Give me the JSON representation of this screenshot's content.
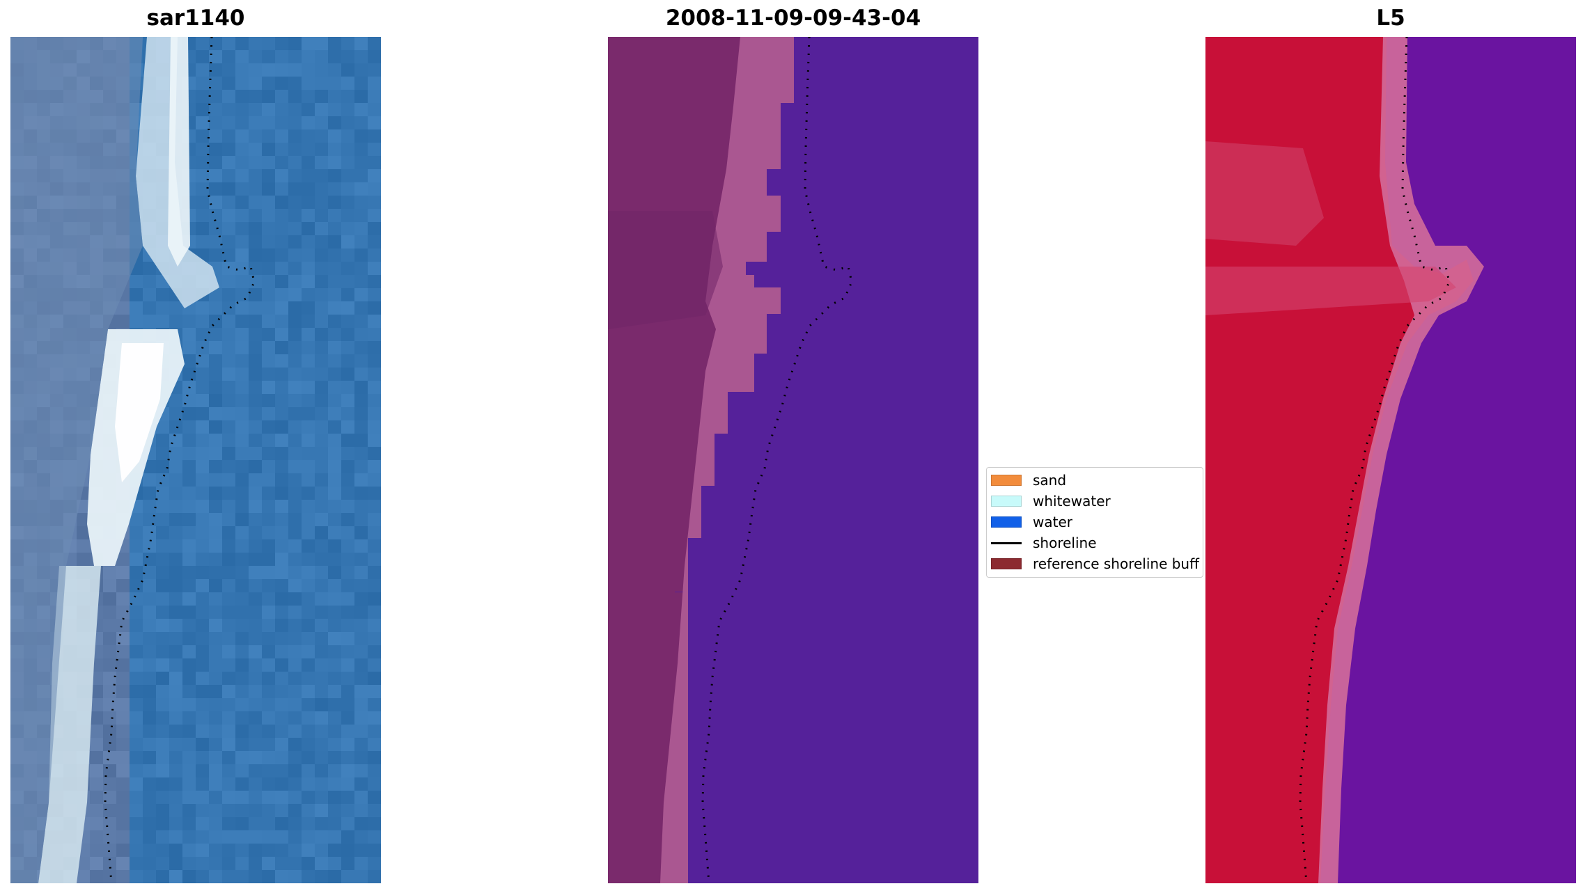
{
  "panels": [
    {
      "title": "sar1140",
      "type": "rgb-satellite-image",
      "colors": {
        "water": "#3a78b2",
        "whitewater": "#e8f4f8",
        "sand": "#8fa6c2",
        "dark": "#466a9c"
      }
    },
    {
      "title": "2008-11-09-09-43-04",
      "type": "classification-image",
      "colors": {
        "water": "#55219a",
        "land": "#7a2a6c",
        "buffer": "#b35f98"
      }
    },
    {
      "title": "L5",
      "type": "index-image",
      "colors": {
        "land": "#c81038",
        "water": "#6a14a0",
        "transition": "#d36c9a"
      }
    }
  ],
  "legend": {
    "items": [
      {
        "label": "sand",
        "color": "#f28c3c",
        "kind": "swatch"
      },
      {
        "label": "whitewater",
        "color": "#c8fafa",
        "kind": "swatch"
      },
      {
        "label": "water",
        "color": "#1160e8",
        "kind": "swatch"
      },
      {
        "label": "shoreline",
        "color": "#000000",
        "kind": "line"
      },
      {
        "label": "reference shoreline buff",
        "color": "#8c2a30",
        "kind": "swatch"
      }
    ]
  }
}
